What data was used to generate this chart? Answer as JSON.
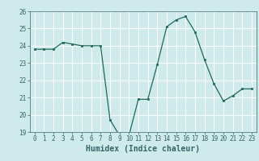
{
  "x": [
    0,
    1,
    2,
    3,
    4,
    5,
    6,
    7,
    8,
    9,
    10,
    11,
    12,
    13,
    14,
    15,
    16,
    17,
    18,
    19,
    20,
    21,
    22,
    23
  ],
  "y": [
    23.8,
    23.8,
    23.8,
    24.2,
    24.1,
    24.0,
    24.0,
    24.0,
    19.7,
    18.8,
    18.8,
    20.9,
    20.9,
    22.9,
    25.1,
    25.5,
    25.7,
    24.8,
    23.2,
    21.8,
    20.8,
    21.1,
    21.5,
    21.5
  ],
  "line_color": "#1a6b5a",
  "marker": "s",
  "markersize": 2.0,
  "linewidth": 0.9,
  "xlabel": "Humidex (Indice chaleur)",
  "xlim": [
    -0.5,
    23.5
  ],
  "ylim": [
    19,
    26
  ],
  "yticks": [
    19,
    20,
    21,
    22,
    23,
    24,
    25,
    26
  ],
  "xticks": [
    0,
    1,
    2,
    3,
    4,
    5,
    6,
    7,
    8,
    9,
    10,
    11,
    12,
    13,
    14,
    15,
    16,
    17,
    18,
    19,
    20,
    21,
    22,
    23
  ],
  "bg_color": "#ceeaea",
  "grid_color": "#ffffff",
  "axis_color": "#336666",
  "tick_fontsize": 5.5,
  "xlabel_fontsize": 7.0
}
